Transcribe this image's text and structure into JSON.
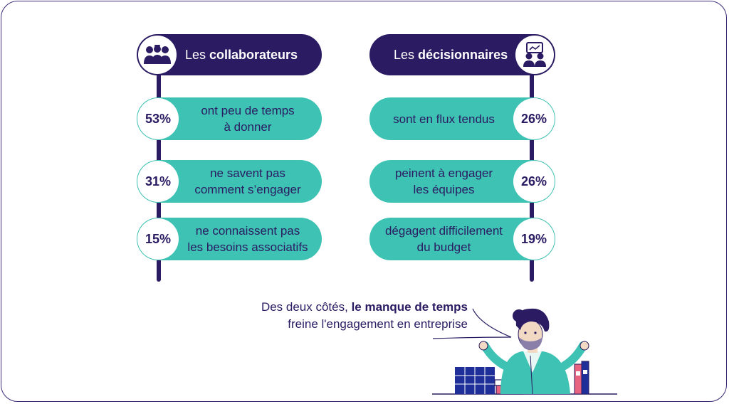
{
  "left": {
    "header_prefix": "Les ",
    "header_bold": "collaborateurs",
    "icon": "team-people-icon",
    "items": [
      {
        "pct": "53%",
        "text": "ont peu de temps\nà donner"
      },
      {
        "pct": "31%",
        "text": "ne savent pas\ncomment s’engager"
      },
      {
        "pct": "15%",
        "text": "ne connaissent pas\nles besoins associatifs"
      }
    ]
  },
  "right": {
    "header_prefix": "Les ",
    "header_bold": "décisionnaires",
    "icon": "presentation-board-icon",
    "items": [
      {
        "pct": "26%",
        "text": "sont en flux tendus"
      },
      {
        "pct": "26%",
        "text": "peinent à engager\nles équipes"
      },
      {
        "pct": "19%",
        "text": "dégagent difficilement\ndu budget"
      }
    ]
  },
  "quote": {
    "part1": "Des deux côtés, ",
    "bold": "le manque de temps",
    "line2": "freine l'engagement en entreprise"
  },
  "colors": {
    "navy": "#2a1b62",
    "teal": "#3ec2b3",
    "white": "#ffffff"
  }
}
